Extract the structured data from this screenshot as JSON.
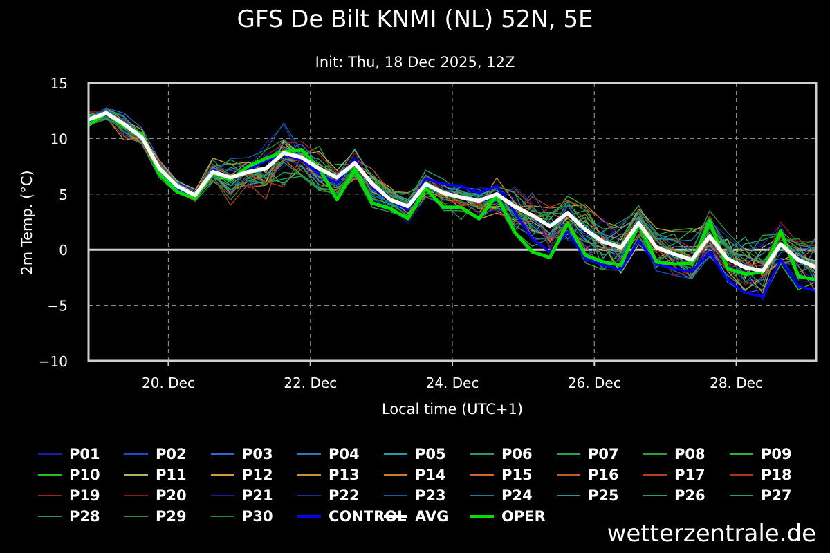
{
  "chart_data": {
    "type": "line",
    "title": "GFS De Bilt KNMI (NL) 52N, 5E",
    "subtitle": "Init: Thu, 18 Dec 2025, 12Z",
    "xlabel": "Local time (UTC+1)",
    "ylabel": "2m Temp. (°C)",
    "ylim": [
      -10,
      15
    ],
    "yticks": [
      -10,
      -5,
      0,
      5,
      10,
      15
    ],
    "ytick_labels": [
      "−10",
      "−5",
      "0",
      "5",
      "10",
      "15"
    ],
    "xlim": [
      "2025-12-18 21:00",
      "2025-12-29 03:00"
    ],
    "xticks": [
      {
        "at": "2025-12-20 00:00",
        "label": "20. Dec"
      },
      {
        "at": "2025-12-22 00:00",
        "label": "22. Dec"
      },
      {
        "at": "2025-12-24 00:00",
        "label": "24. Dec"
      },
      {
        "at": "2025-12-26 00:00",
        "label": "26. Dec"
      },
      {
        "at": "2025-12-28 00:00",
        "label": "28. Dec"
      }
    ],
    "grid": true,
    "time_step_hours": 6,
    "x_start": "2025-12-18 21:00",
    "avg": [
      11.7,
      12.3,
      11.3,
      10.1,
      7.3,
      5.7,
      4.9,
      7.0,
      6.5,
      7.0,
      7.3,
      8.7,
      8.3,
      7.3,
      6.5,
      7.8,
      5.9,
      4.5,
      3.9,
      5.9,
      5.1,
      4.7,
      4.4,
      5.0,
      3.9,
      3.1,
      2.1,
      3.3,
      1.8,
      0.7,
      0.2,
      2.4,
      0.2,
      -0.4,
      -0.9,
      1.2,
      -0.8,
      -1.6,
      -1.9,
      0.5,
      -0.9,
      -1.6
    ],
    "oper": [
      11.2,
      12.3,
      11.1,
      10.4,
      6.8,
      5.2,
      4.6,
      6.9,
      6.3,
      7.5,
      8.2,
      8.8,
      9.0,
      7.3,
      4.5,
      7.2,
      4.2,
      3.7,
      2.8,
      5.5,
      3.8,
      3.8,
      2.8,
      4.9,
      1.6,
      -0.2,
      -0.7,
      2.4,
      -0.5,
      -1.1,
      -1.4,
      2.3,
      -1.1,
      -1.3,
      -1.2,
      2.6,
      -1.7,
      -2.2,
      -2.0,
      1.7,
      -2.4,
      -2.7
    ],
    "control": [
      11.5,
      12.2,
      11.4,
      10.2,
      7.2,
      5.5,
      4.8,
      7.2,
      6.4,
      7.2,
      8.0,
      8.5,
      8.1,
      6.8,
      6.0,
      8.2,
      5.6,
      4.4,
      3.6,
      6.4,
      5.9,
      5.7,
      5.1,
      5.7,
      3.4,
      1.0,
      -0.2,
      1.6,
      -0.8,
      -1.4,
      -1.8,
      0.8,
      -1.3,
      -1.7,
      -2.0,
      -0.2,
      -2.7,
      -3.9,
      -4.2,
      -0.9,
      -3.3,
      -3.7
    ],
    "envelope_upper": [
      12.6,
      13.3,
      12.7,
      11.4,
      8.3,
      6.6,
      6.5,
      8.4,
      9.1,
      9.3,
      10.3,
      11.4,
      10.4,
      9.3,
      7.9,
      9.2,
      8.0,
      6.3,
      5.4,
      8.6,
      6.6,
      6.4,
      6.7,
      7.8,
      6.9,
      6.3,
      5.9,
      7.2,
      6.1,
      5.9,
      5.8,
      4.4,
      3.0,
      2.9,
      3.2,
      5.0,
      4.3,
      3.1,
      2.4,
      5.4,
      3.1,
      2.8
    ],
    "envelope_lower": [
      10.9,
      11.6,
      9.4,
      9.5,
      6.4,
      4.8,
      4.1,
      5.7,
      4.0,
      5.2,
      4.0,
      3.6,
      6.2,
      4.6,
      4.3,
      5.3,
      3.8,
      3.4,
      2.0,
      4.7,
      3.4,
      2.6,
      2.1,
      3.3,
      0.1,
      -0.7,
      -1.5,
      0.6,
      -1.2,
      -1.8,
      -2.1,
      0.4,
      -1.9,
      -2.3,
      -2.6,
      -0.6,
      -3.0,
      -3.9,
      -4.5,
      -1.3,
      -3.7,
      -5.3
    ],
    "members": [
      {
        "name": "P01",
        "color": "#1a1ab0"
      },
      {
        "name": "P02",
        "color": "#1a4ad0"
      },
      {
        "name": "P03",
        "color": "#2a68d8"
      },
      {
        "name": "P04",
        "color": "#2a7ab8"
      },
      {
        "name": "P05",
        "color": "#2a9aa8"
      },
      {
        "name": "P06",
        "color": "#2a9a6a"
      },
      {
        "name": "P07",
        "color": "#2aa050"
      },
      {
        "name": "P08",
        "color": "#2aa040"
      },
      {
        "name": "P09",
        "color": "#30b030"
      },
      {
        "name": "P10",
        "color": "#20c020"
      },
      {
        "name": "P11",
        "color": "#a8b860"
      },
      {
        "name": "P12",
        "color": "#c8a040"
      },
      {
        "name": "P13",
        "color": "#c89040"
      },
      {
        "name": "P14",
        "color": "#c88030"
      },
      {
        "name": "P15",
        "color": "#c86a30"
      },
      {
        "name": "P16",
        "color": "#c05a30"
      },
      {
        "name": "P17",
        "color": "#b04020"
      },
      {
        "name": "P18",
        "color": "#b03020"
      },
      {
        "name": "P19",
        "color": "#a02020"
      },
      {
        "name": "P20",
        "color": "#901818"
      },
      {
        "name": "P21",
        "color": "#1a1aa0"
      },
      {
        "name": "P22",
        "color": "#1a2a98"
      },
      {
        "name": "P23",
        "color": "#1a5a98"
      },
      {
        "name": "P24",
        "color": "#1a7aa0"
      },
      {
        "name": "P25",
        "color": "#2a9aa0"
      },
      {
        "name": "P26",
        "color": "#2a9a78"
      },
      {
        "name": "P27",
        "color": "#2aa068"
      },
      {
        "name": "P28",
        "color": "#2a9a50"
      },
      {
        "name": "P29",
        "color": "#2a9040"
      },
      {
        "name": "P30",
        "color": "#209030"
      }
    ],
    "highlight_legend": [
      {
        "name": "CONTROL",
        "color": "#0000ff"
      },
      {
        "name": "AVG",
        "color": "#ffffff"
      },
      {
        "name": "OPER",
        "color": "#00e000"
      }
    ]
  },
  "branding": {
    "site": "wetterzentrale.de"
  }
}
